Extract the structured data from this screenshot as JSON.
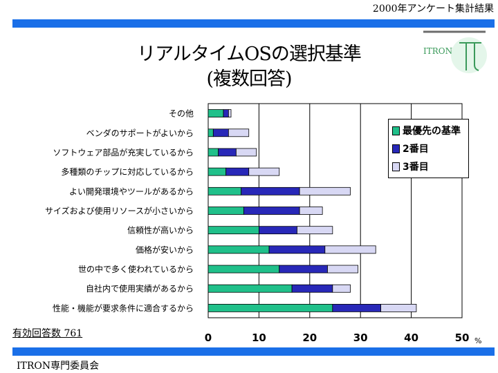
{
  "header": {
    "survey_label": "2000年アンケート集計結果"
  },
  "title": {
    "line1": "リアルタイムOSの選択基準",
    "line2": "(複数回答)"
  },
  "logo": {
    "text": "ITRON"
  },
  "responses": {
    "label": "有効回答数 761"
  },
  "footer": {
    "label": "ITRON専門委員会"
  },
  "colors": {
    "accent_bar": "#1a6fe8",
    "first": "#20c08a",
    "second": "#2828b8",
    "third": "#d8d8f4"
  },
  "chart_data": {
    "type": "bar",
    "orientation": "horizontal",
    "stacked": true,
    "categories": [
      "その他",
      "ベンダのサポートがよいから",
      "ソフトウェア部品が充実しているから",
      "多種類のチップに対応しているから",
      "よい開発環境やツールがあるから",
      "サイズおよび使用リソースが小さいから",
      "信頼性が高いから",
      "価格が安いから",
      "世の中で多く使われているから",
      "自社内で使用実績があるから",
      "性能・機能が要求条件に適合するから"
    ],
    "series": [
      {
        "name": "最優先の基準",
        "values": [
          3,
          1,
          2,
          3.5,
          6.5,
          7,
          10,
          12,
          14,
          16.5,
          24.5
        ]
      },
      {
        "name": "2番目",
        "values": [
          1,
          3,
          3.5,
          4.5,
          11.5,
          11,
          7.5,
          11,
          9.5,
          8,
          9.5
        ]
      },
      {
        "name": "3番目",
        "values": [
          0.5,
          4,
          4,
          6,
          10,
          4.5,
          7,
          10,
          6,
          3.5,
          7
        ]
      }
    ],
    "xlim": [
      0,
      50
    ],
    "xticks": [
      "0",
      "10",
      "20",
      "30",
      "40",
      "50"
    ],
    "unit": "%",
    "grid": true,
    "legend_position": "right"
  }
}
